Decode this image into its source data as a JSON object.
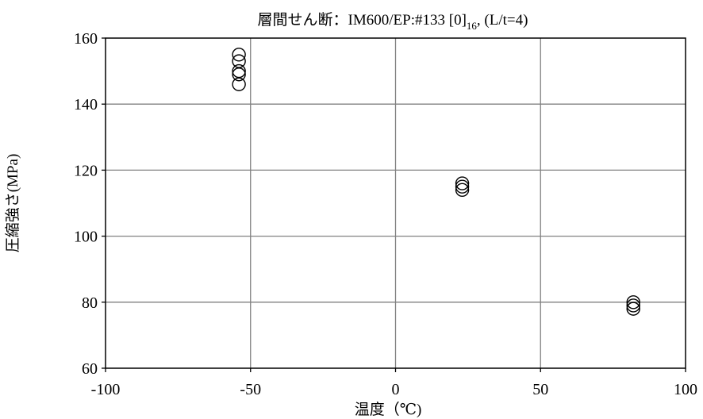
{
  "chart_data": {
    "type": "scatter",
    "title": "層間せん断：IM600/EP:#133 [0]",
    "title_sub": "16",
    "title_tail": ", (L/t=4)",
    "xlabel": "温度（℃)",
    "ylabel": "圧縮強さ(MPa)",
    "xlim": [
      -100,
      100
    ],
    "ylim": [
      60,
      160
    ],
    "xticks": [
      -100,
      -50,
      0,
      50,
      100
    ],
    "yticks": [
      60,
      80,
      100,
      120,
      140,
      160
    ],
    "grid": true,
    "marker": "open-circle",
    "series": [
      {
        "points": [
          {
            "x": -54,
            "y": 155
          },
          {
            "x": -54,
            "y": 153
          },
          {
            "x": -54,
            "y": 150
          },
          {
            "x": -54,
            "y": 149
          },
          {
            "x": -54,
            "y": 146
          },
          {
            "x": 23,
            "y": 116
          },
          {
            "x": 23,
            "y": 115
          },
          {
            "x": 23,
            "y": 114
          },
          {
            "x": 82,
            "y": 80
          },
          {
            "x": 82,
            "y": 79
          },
          {
            "x": 82,
            "y": 78
          }
        ]
      }
    ]
  }
}
